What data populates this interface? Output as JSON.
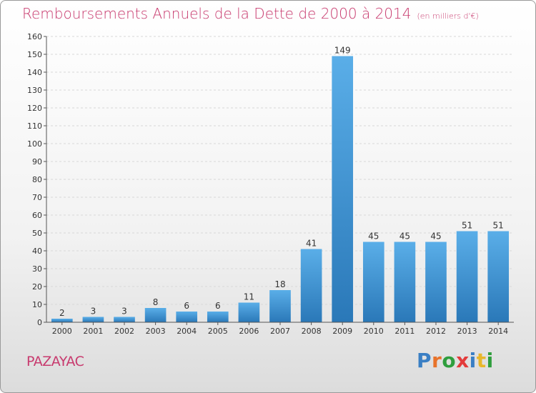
{
  "header": {
    "title": "Remboursements Annuels de la Dette de 2000 à 2014",
    "subtitle": "(en milliers d'€)"
  },
  "footer": {
    "place": "PAZAYAC",
    "logo": "Proxiti",
    "logo_colors": [
      "#3a7fc4",
      "#e8732b",
      "#2f9e3e",
      "#e33b3b",
      "#3a7fc4",
      "#e8b72b",
      "#2f9e3e"
    ]
  },
  "colors": {
    "bar_top": "#5aaee8",
    "bar_bottom": "#2a78b8",
    "title": "#c83a6e",
    "axis": "#555555",
    "grid": "#d8d8d8"
  },
  "chart_data": {
    "type": "bar",
    "title": "Remboursements Annuels de la Dette de 2000 à 2014",
    "subtitle": "(en milliers d'€)",
    "categories": [
      "2000",
      "2001",
      "2002",
      "2003",
      "2004",
      "2005",
      "2006",
      "2007",
      "2008",
      "2009",
      "2010",
      "2011",
      "2012",
      "2013",
      "2014"
    ],
    "values": [
      2,
      3,
      3,
      8,
      6,
      6,
      11,
      18,
      41,
      149,
      45,
      45,
      45,
      51,
      51
    ],
    "ylim": [
      0,
      160
    ],
    "yticks": [
      0,
      10,
      20,
      30,
      40,
      50,
      60,
      70,
      80,
      90,
      100,
      110,
      120,
      130,
      140,
      150,
      160
    ],
    "grid": true,
    "xlabel": "",
    "ylabel": ""
  }
}
